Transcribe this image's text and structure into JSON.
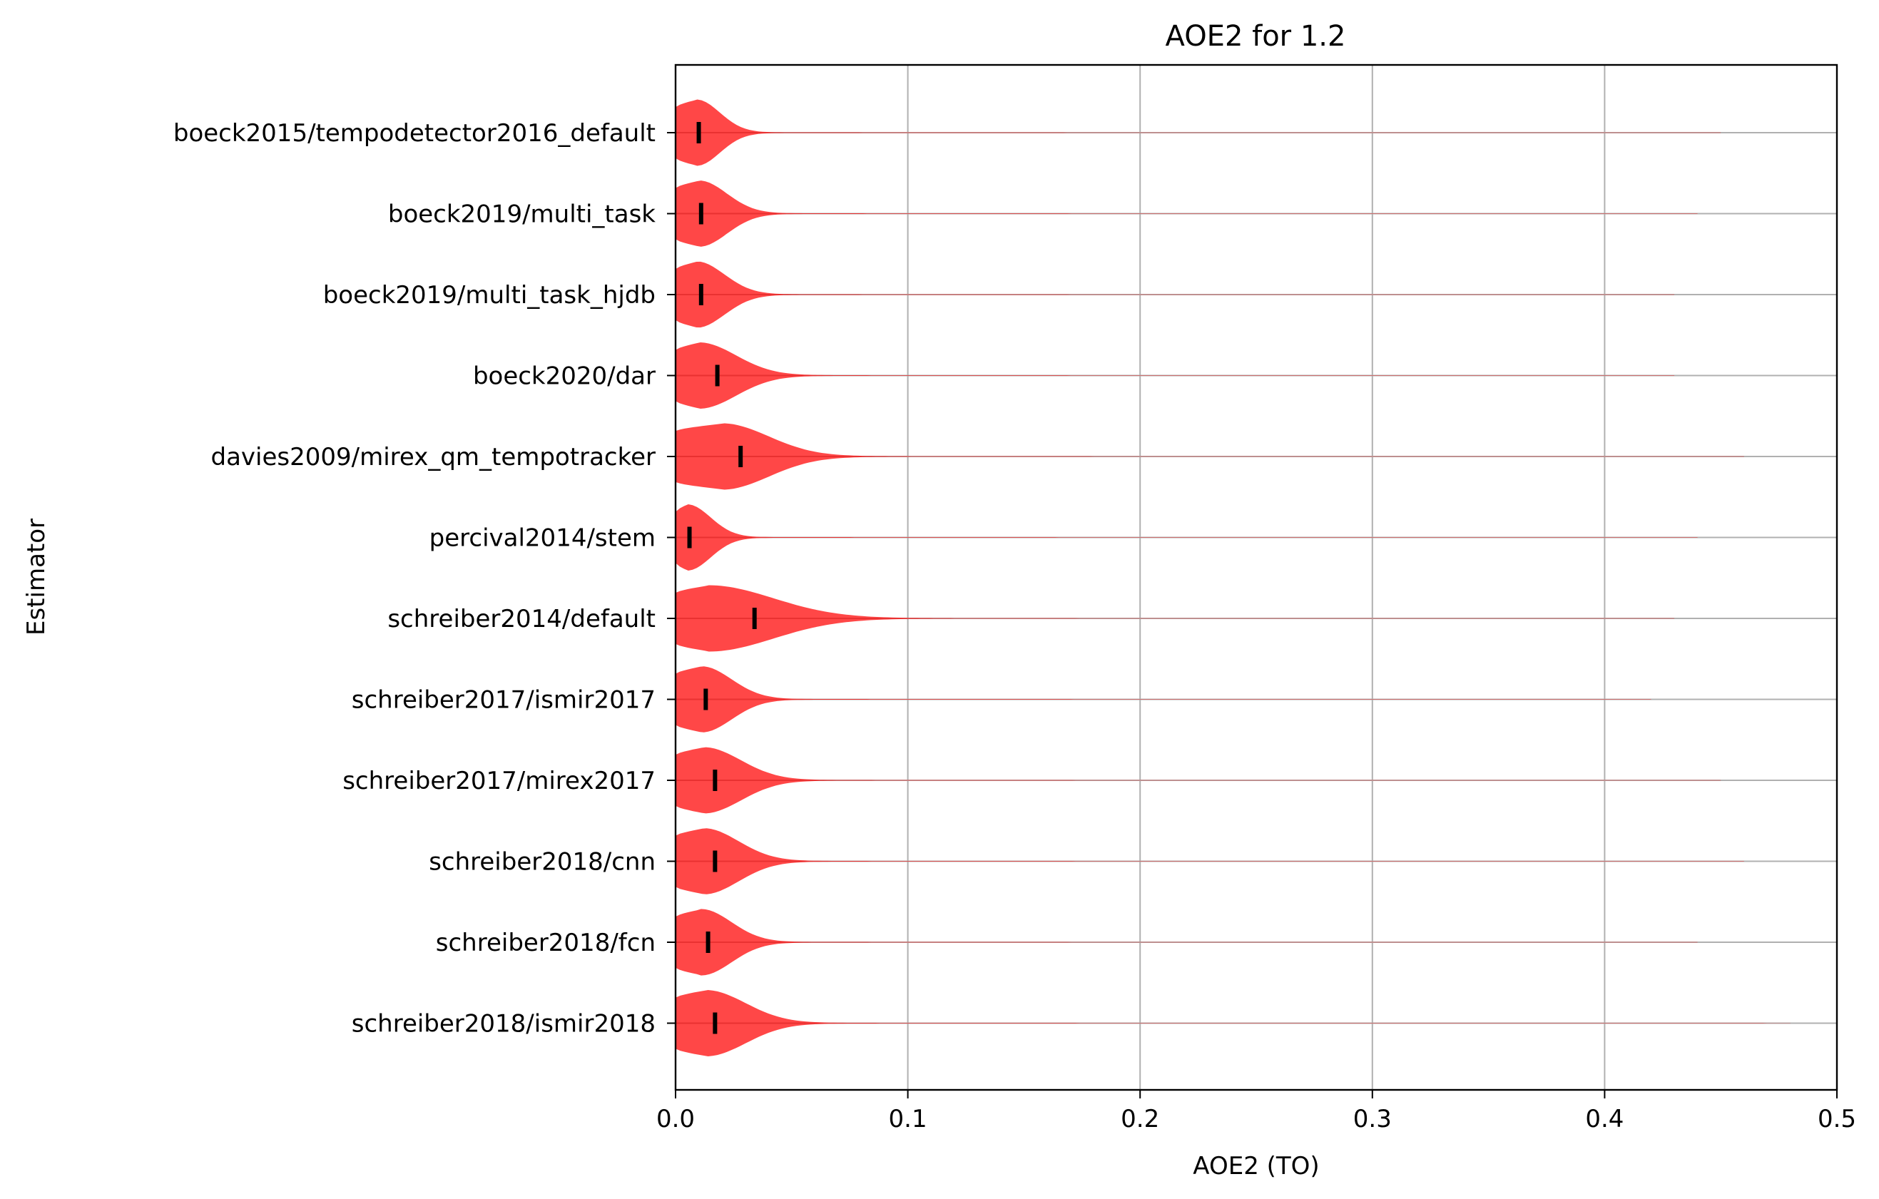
{
  "chart_data": {
    "type": "violin",
    "orientation": "horizontal",
    "title": "AOE2 for 1.2",
    "xlabel": "AOE2 (TO)",
    "ylabel": "Estimator",
    "xlim": [
      0.0,
      0.5
    ],
    "xticks": [
      "0.0",
      "0.1",
      "0.2",
      "0.3",
      "0.4",
      "0.5"
    ],
    "grid": true,
    "violin_color": "#ff0000",
    "violin_alpha": 0.72,
    "median_marker_color": "#000000",
    "categories": [
      "boeck2015/tempodetector2016_default",
      "boeck2019/multi_task",
      "boeck2019/multi_task_hjdb",
      "boeck2020/dar",
      "davies2009/mirex_qm_tempotracker",
      "percival2014/stem",
      "schreiber2014/default",
      "schreiber2017/ismir2017",
      "schreiber2017/mirex2017",
      "schreiber2018/cnn",
      "schreiber2018/fcn",
      "schreiber2018/ismir2018"
    ],
    "series": [
      {
        "median": 0.01,
        "peak": 0.009,
        "spread": 0.01,
        "max": 0.45
      },
      {
        "median": 0.011,
        "peak": 0.01,
        "spread": 0.012,
        "max": 0.44
      },
      {
        "median": 0.011,
        "peak": 0.009,
        "spread": 0.012,
        "max": 0.43
      },
      {
        "median": 0.018,
        "peak": 0.01,
        "spread": 0.016,
        "max": 0.43
      },
      {
        "median": 0.028,
        "peak": 0.02,
        "spread": 0.02,
        "max": 0.46
      },
      {
        "median": 0.006,
        "peak": 0.005,
        "spread": 0.01,
        "max": 0.44
      },
      {
        "median": 0.034,
        "peak": 0.014,
        "spread": 0.028,
        "max": 0.43
      },
      {
        "median": 0.013,
        "peak": 0.011,
        "spread": 0.013,
        "max": 0.42
      },
      {
        "median": 0.017,
        "peak": 0.012,
        "spread": 0.016,
        "max": 0.45
      },
      {
        "median": 0.017,
        "peak": 0.012,
        "spread": 0.015,
        "max": 0.46
      },
      {
        "median": 0.014,
        "peak": 0.011,
        "spread": 0.013,
        "max": 0.44
      },
      {
        "median": 0.017,
        "peak": 0.013,
        "spread": 0.017,
        "max": 0.48
      }
    ]
  }
}
